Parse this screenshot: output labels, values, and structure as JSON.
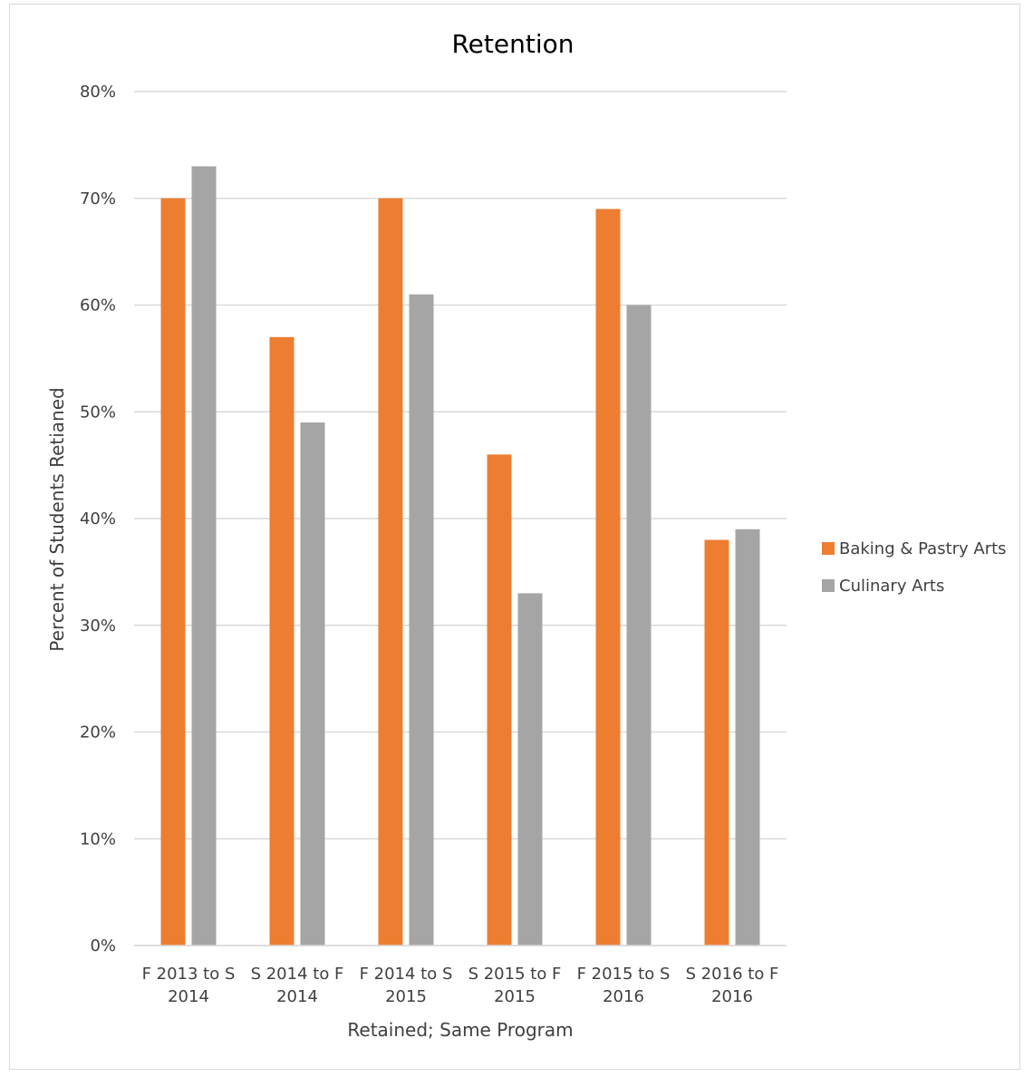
{
  "chart_data": {
    "type": "bar",
    "title": "Retention",
    "xlabel": "Retained; Same Program",
    "ylabel": "Percent of Students Retianed",
    "categories": [
      [
        "F 2013 to S",
        "2014"
      ],
      [
        "S 2014 to F",
        "2014"
      ],
      [
        "F 2014 to S",
        "2015"
      ],
      [
        "S 2015 to F",
        "2015"
      ],
      [
        "F 2015 to S",
        "2016"
      ],
      [
        "S 2016 to F",
        "2016"
      ]
    ],
    "series": [
      {
        "name": "Baking & Pastry Arts",
        "color": "#ED7D31",
        "values": [
          70,
          57,
          70,
          46,
          69,
          38
        ]
      },
      {
        "name": "Culinary Arts",
        "color": "#A5A5A5",
        "values": [
          73,
          49,
          61,
          33,
          60,
          39
        ]
      }
    ],
    "ylim": [
      0,
      80
    ],
    "yticks": [
      0,
      10,
      20,
      30,
      40,
      50,
      60,
      70,
      80
    ],
    "ytick_suffix": "%",
    "grid": true,
    "legend_position": "right"
  }
}
